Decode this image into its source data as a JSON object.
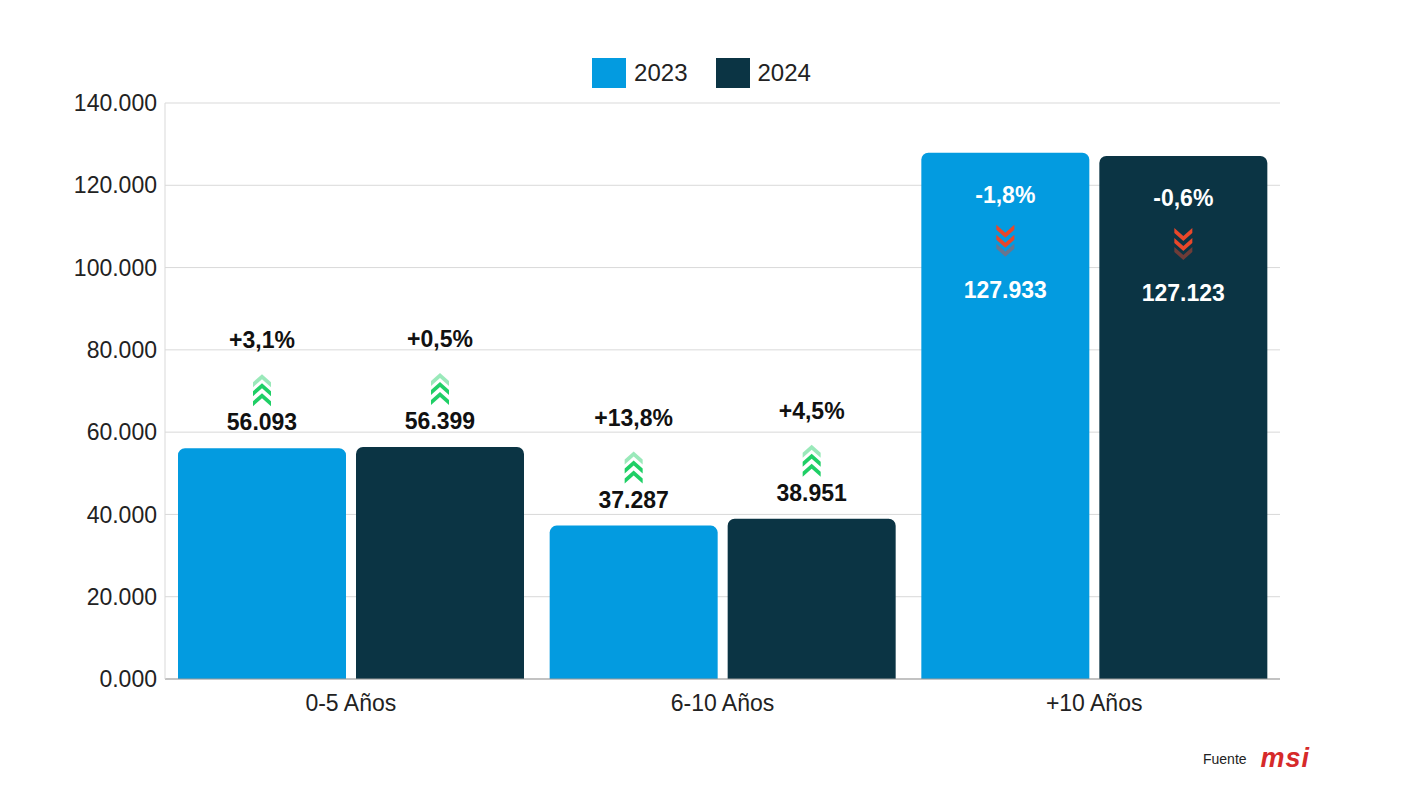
{
  "chart_data": {
    "type": "bar",
    "categories": [
      "0-5 Años",
      "6-10 Años",
      "+10 Años"
    ],
    "series": [
      {
        "name": "2023",
        "color": "#039be0",
        "values": [
          56093,
          37287,
          127933
        ],
        "value_labels": [
          "56.093",
          "37.287",
          "127.933"
        ],
        "change_values": [
          3.1,
          13.8,
          -1.8
        ],
        "change_labels": [
          "+3,1%",
          "+13,8%",
          "-1,8%"
        ]
      },
      {
        "name": "2024",
        "color": "#0b3444",
        "values": [
          56399,
          38951,
          127123
        ],
        "value_labels": [
          "56.399",
          "38.951",
          "127.123"
        ],
        "change_values": [
          0.5,
          4.5,
          -0.6
        ],
        "change_labels": [
          "+0,5%",
          "+4,5%",
          "-0,6%"
        ]
      }
    ],
    "ylim": [
      0,
      140000
    ],
    "yticks": [
      {
        "value": 0,
        "label": "0.000"
      },
      {
        "value": 20000,
        "label": "20.000"
      },
      {
        "value": 40000,
        "label": "40.000"
      },
      {
        "value": 60000,
        "label": "60.000"
      },
      {
        "value": 80000,
        "label": "80.000"
      },
      {
        "value": 100000,
        "label": "100.000"
      },
      {
        "value": 120000,
        "label": "120.000"
      },
      {
        "value": 140000,
        "label": "140.000"
      }
    ],
    "grid": true,
    "legend": "top",
    "data_labels": true,
    "source": "Fuente",
    "source_logo": "msi"
  }
}
